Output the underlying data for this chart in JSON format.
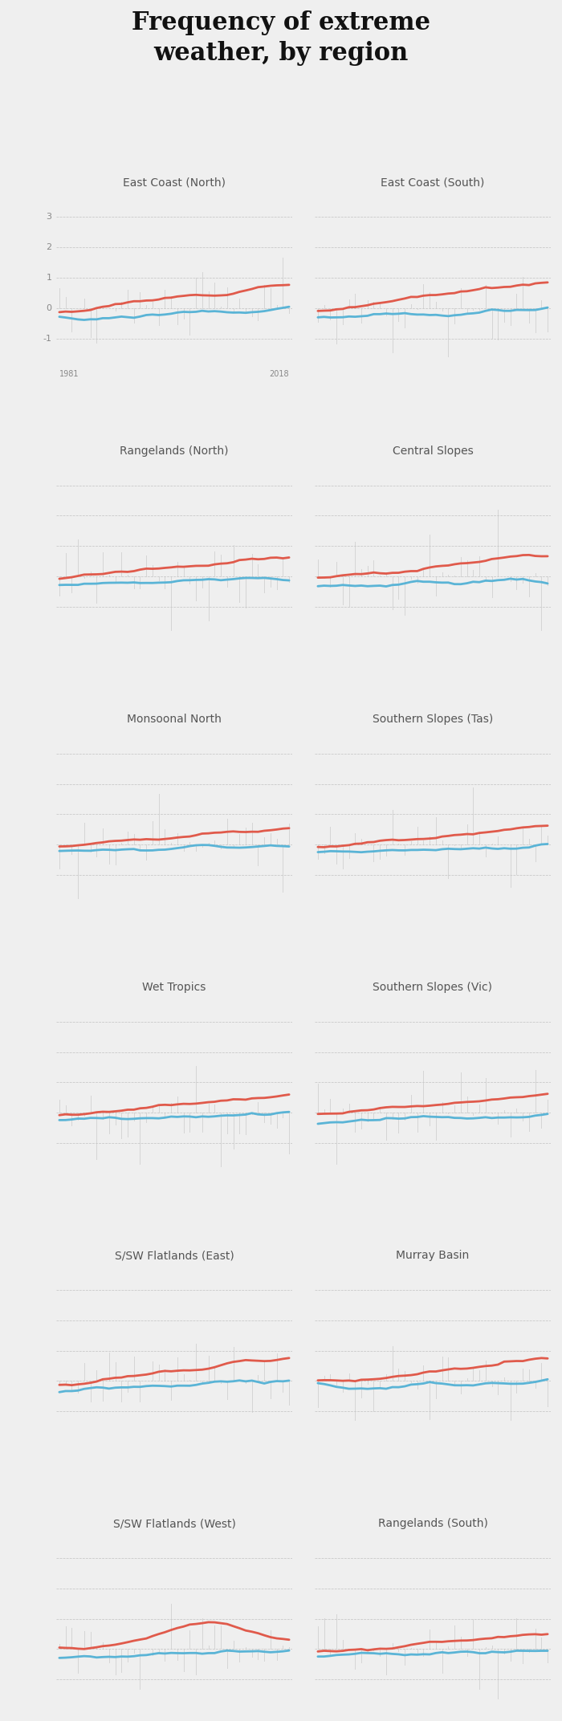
{
  "title": "Frequency of extreme\nweather, by region",
  "title_fontsize": 22,
  "bg_color": "#efefef",
  "regions": [
    "East Coast (North)",
    "East Coast (South)",
    "Rangelands (North)",
    "Central Slopes",
    "Monsoonal North",
    "Southern Slopes (Tas)",
    "Wet Tropics",
    "Southern Slopes (Vic)",
    "S/SW Flatlands (East)",
    "Murray Basin",
    "S/SW Flatlands (West)",
    "Rangelands (South)"
  ],
  "year_start": 1981,
  "year_end": 2018,
  "ylim": [
    -1.8,
    3.5
  ],
  "yticks": [
    -1,
    0,
    1,
    2,
    3
  ],
  "bar_color": "#cccccc",
  "blue_color": "#5ab4d6",
  "red_color": "#e05a4b",
  "grid_color": "#bbbbbb",
  "label_color": "#555555",
  "axis_label_color": "#888888",
  "label_fontsize": 10,
  "tick_fontsize": 8,
  "year_fontsize": 7,
  "fig_width": 7.0,
  "fig_height": 21.44,
  "dpi": 100
}
